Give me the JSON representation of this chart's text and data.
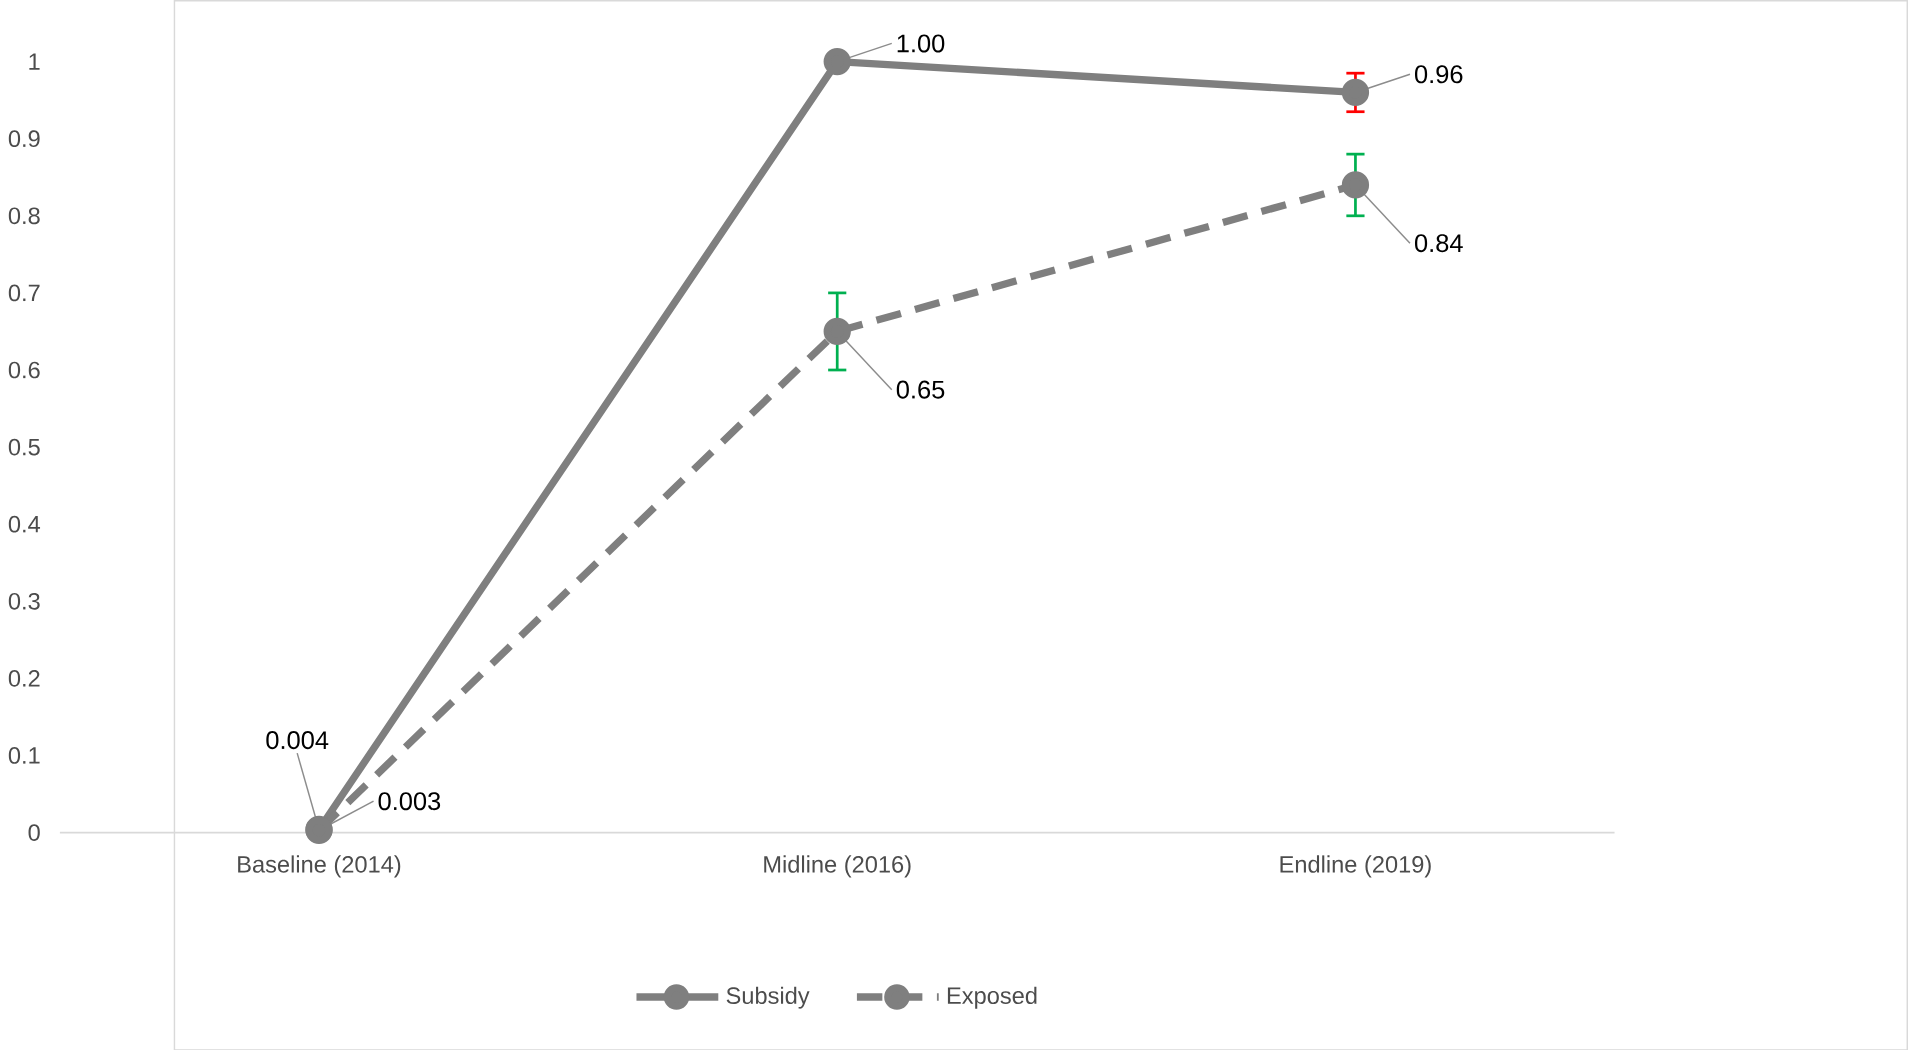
{
  "chart_data": {
    "type": "line",
    "categories": [
      "Baseline  (2014)",
      "Midline (2016)",
      "Endline (2019)"
    ],
    "series": [
      {
        "name": "Subsidy",
        "color": "#7f7f7f",
        "values": [
          0.004,
          1.0,
          0.96
        ],
        "value_labels": [
          "0.004",
          "1.00",
          "0.96"
        ],
        "errors": [
          null,
          null,
          0.025
        ],
        "line_style": "solid"
      },
      {
        "name": "Exposed",
        "color": "#7f7f7f",
        "values": [
          0.003,
          0.65,
          0.84
        ],
        "value_labels": [
          "0.003",
          "0.65",
          "0.84"
        ],
        "errors": [
          null,
          0.05,
          0.04
        ],
        "line_style": "dashed"
      }
    ],
    "ylim": [
      0,
      1
    ],
    "yticks": [
      0,
      0.1,
      0.2,
      0.3,
      0.4,
      0.5,
      0.6,
      0.7,
      0.8,
      0.9,
      1
    ],
    "marker": "circle",
    "grid": false,
    "legend": "bottom"
  }
}
